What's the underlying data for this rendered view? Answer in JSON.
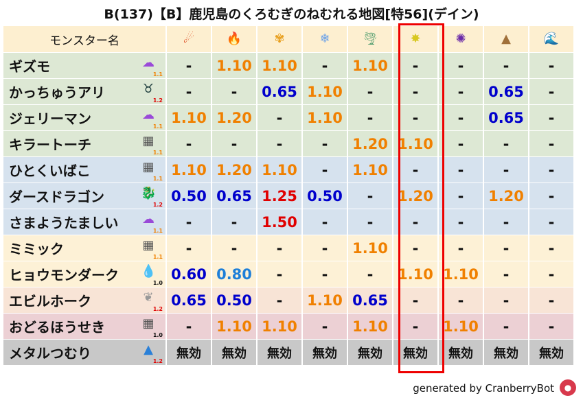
{
  "title": "B(137)【B】鹿児島のくろむぎのねむれる地図[特56](デイン)",
  "header": {
    "name_label": "モンスター名",
    "elements": [
      {
        "icon": "fireball-icon",
        "glyph": "☄",
        "color": "#d93a10"
      },
      {
        "icon": "flame-icon",
        "glyph": "🔥",
        "color": "#e85a10"
      },
      {
        "icon": "explosion-icon",
        "glyph": "✾",
        "color": "#e8a020"
      },
      {
        "icon": "ice-icon",
        "glyph": "❄",
        "color": "#6aa0e8"
      },
      {
        "icon": "wind-icon",
        "glyph": "🌪",
        "color": "#4a9a6a"
      },
      {
        "icon": "lightning-icon",
        "glyph": "✸",
        "color": "#d8c820"
      },
      {
        "icon": "dark-icon",
        "glyph": "✺",
        "color": "#6a2aa8"
      },
      {
        "icon": "earth-icon",
        "glyph": "▲",
        "color": "#a0703a"
      },
      {
        "icon": "water-icon",
        "glyph": "🌊",
        "color": "#2a70d8"
      }
    ]
  },
  "colors": {
    "orange": "#f08000",
    "blue": "#0000cc",
    "lightblue": "#1e7fd8",
    "red": "#e00000",
    "black": "#111111",
    "highlight": "#ee0000"
  },
  "rows": [
    {
      "name": "ギズモ",
      "icon": "gas-monster-icon",
      "glyph": "☁",
      "icolor": "#9a4ad8",
      "level": "1.1",
      "lcolor": "#f08000",
      "bg": "#dde8d4",
      "values": [
        "-",
        "1.10",
        "1.10",
        "-",
        "1.10",
        "-",
        "-",
        "-",
        "-"
      ],
      "vc": [
        "black",
        "orange",
        "orange",
        "black",
        "orange",
        "black",
        "black",
        "black",
        "black"
      ]
    },
    {
      "name": "かっちゅうアリ",
      "icon": "ant-icon",
      "glyph": "♉",
      "icolor": "#1a3a3a",
      "level": "1.2",
      "lcolor": "#e00000",
      "bg": "#dde8d4",
      "values": [
        "-",
        "-",
        "0.65",
        "1.10",
        "-",
        "-",
        "-",
        "0.65",
        "-"
      ],
      "vc": [
        "black",
        "black",
        "blue",
        "orange",
        "black",
        "black",
        "black",
        "blue",
        "black"
      ]
    },
    {
      "name": "ジェリーマン",
      "icon": "gas-monster-icon",
      "glyph": "☁",
      "icolor": "#9a4ad8",
      "level": "1.1",
      "lcolor": "#f08000",
      "bg": "#dde8d4",
      "values": [
        "1.10",
        "1.20",
        "-",
        "1.10",
        "-",
        "-",
        "-",
        "0.65",
        "-"
      ],
      "vc": [
        "orange",
        "orange",
        "black",
        "orange",
        "black",
        "black",
        "black",
        "blue",
        "black"
      ]
    },
    {
      "name": "キラートーチ",
      "icon": "brick-icon",
      "glyph": "▦",
      "icolor": "#555",
      "level": "1.1",
      "lcolor": "#f08000",
      "bg": "#dde8d4",
      "values": [
        "-",
        "-",
        "-",
        "-",
        "1.20",
        "1.10",
        "-",
        "-",
        "-"
      ],
      "vc": [
        "black",
        "black",
        "black",
        "black",
        "orange",
        "orange",
        "black",
        "black",
        "black"
      ]
    },
    {
      "name": "ひとくいばこ",
      "icon": "brick-icon",
      "glyph": "▦",
      "icolor": "#555",
      "level": "1.1",
      "lcolor": "#f08000",
      "bg": "#d6e2ee",
      "values": [
        "1.10",
        "1.20",
        "1.10",
        "-",
        "1.10",
        "-",
        "-",
        "-",
        "-"
      ],
      "vc": [
        "orange",
        "orange",
        "orange",
        "black",
        "orange",
        "black",
        "black",
        "black",
        "black"
      ]
    },
    {
      "name": "ダースドラゴン",
      "icon": "dragon-icon",
      "glyph": "🐉",
      "icolor": "#c01010",
      "level": "1.2",
      "lcolor": "#e00000",
      "bg": "#d6e2ee",
      "values": [
        "0.50",
        "0.65",
        "1.25",
        "0.50",
        "-",
        "1.20",
        "-",
        "1.20",
        "-"
      ],
      "vc": [
        "blue",
        "blue",
        "red",
        "blue",
        "black",
        "orange",
        "black",
        "orange",
        "black"
      ]
    },
    {
      "name": "さまようたましい",
      "icon": "gas-monster-icon",
      "glyph": "☁",
      "icolor": "#9a4ad8",
      "level": "1.1",
      "lcolor": "#f08000",
      "bg": "#d6e2ee",
      "values": [
        "-",
        "-",
        "1.50",
        "-",
        "-",
        "-",
        "-",
        "-",
        "-"
      ],
      "vc": [
        "black",
        "black",
        "red",
        "black",
        "black",
        "black",
        "black",
        "black",
        "black"
      ]
    },
    {
      "name": "ミミック",
      "icon": "brick-icon",
      "glyph": "▦",
      "icolor": "#555",
      "level": "1.1",
      "lcolor": "#f08000",
      "bg": "#fdf1d6",
      "values": [
        "-",
        "-",
        "-",
        "-",
        "1.10",
        "-",
        "-",
        "-",
        "-"
      ],
      "vc": [
        "black",
        "black",
        "black",
        "black",
        "orange",
        "black",
        "black",
        "black",
        "black"
      ]
    },
    {
      "name": "ヒョウモンダーク",
      "icon": "water-drop-icon",
      "glyph": "💧",
      "icolor": "#2a80d8",
      "level": "1.0",
      "lcolor": "#111111",
      "bg": "#fdf1d6",
      "values": [
        "0.60",
        "0.80",
        "-",
        "-",
        "-",
        "1.10",
        "1.10",
        "-",
        "-"
      ],
      "vc": [
        "blue",
        "lightblue",
        "black",
        "black",
        "black",
        "orange",
        "orange",
        "black",
        "black"
      ]
    },
    {
      "name": "エビルホーク",
      "icon": "wing-icon",
      "glyph": "❦",
      "icolor": "#999",
      "level": "1.2",
      "lcolor": "#e00000",
      "bg": "#f8e4d6",
      "values": [
        "0.65",
        "0.50",
        "-",
        "1.10",
        "0.65",
        "-",
        "-",
        "-",
        "-"
      ],
      "vc": [
        "blue",
        "blue",
        "black",
        "orange",
        "blue",
        "black",
        "black",
        "black",
        "black"
      ]
    },
    {
      "name": "おどるほうせき",
      "icon": "brick-icon",
      "glyph": "▦",
      "icolor": "#555",
      "level": "1.0",
      "lcolor": "#111111",
      "bg": "#ecd0d4",
      "values": [
        "-",
        "1.10",
        "1.10",
        "-",
        "1.10",
        "-",
        "1.10",
        "-",
        "-"
      ],
      "vc": [
        "black",
        "orange",
        "orange",
        "black",
        "orange",
        "black",
        "orange",
        "black",
        "black"
      ]
    },
    {
      "name": "メタルつむり",
      "icon": "slime-icon",
      "glyph": "▲",
      "icolor": "#2a80d8",
      "level": "1.2",
      "lcolor": "#e00000",
      "bg": "#c8c8c8",
      "values": [
        "無効",
        "無効",
        "無効",
        "無効",
        "無効",
        "無効",
        "無効",
        "無効",
        "無効"
      ],
      "vc": [
        "black",
        "black",
        "black",
        "black",
        "black",
        "black",
        "black",
        "black",
        "black"
      ]
    }
  ],
  "footer": "generated by CranberryBot"
}
